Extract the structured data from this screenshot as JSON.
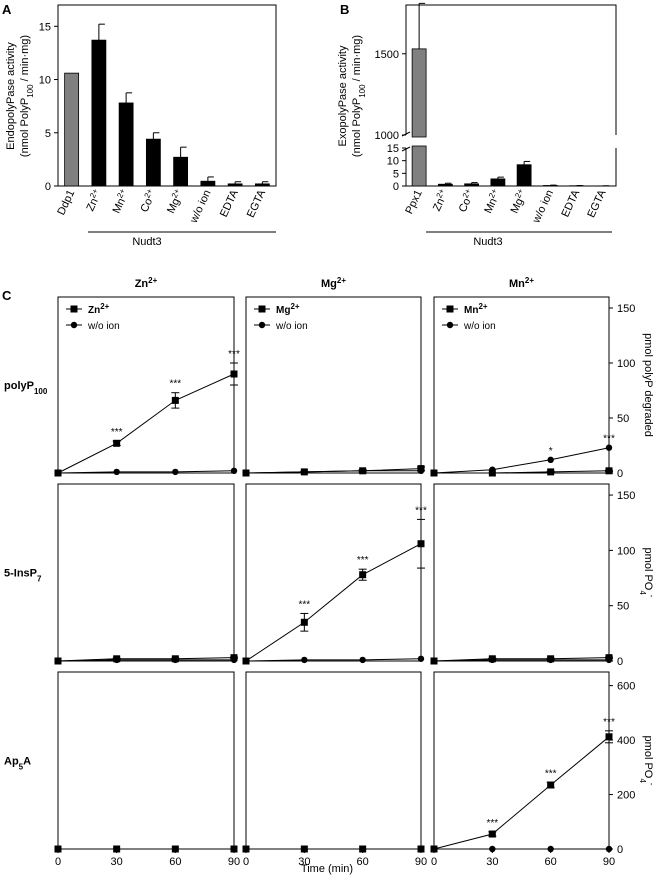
{
  "panel_letters": [
    "A",
    "B",
    "C"
  ],
  "group_label_a": "Nudt3",
  "group_label_b": "Nudt3",
  "chart_data": [
    {
      "id": "A",
      "type": "bar",
      "ylabel_line1": "EndopolyPase activity",
      "ylabel_line2_parts": [
        "(nmol PolyP",
        "100",
        " / min·mg)"
      ],
      "ylim": [
        0,
        17
      ],
      "yticks": [
        0,
        5,
        10,
        15
      ],
      "categories": [
        "Ddp1",
        "Zn²⁺",
        "Mn²⁺",
        "Co²⁺",
        "Mg²⁺",
        "w/o ion",
        "EDTA",
        "EGTA"
      ],
      "values": [
        10.6,
        13.7,
        7.8,
        4.4,
        2.7,
        0.45,
        0.2,
        0.2
      ],
      "errors": [
        0,
        1.5,
        0.95,
        0.6,
        0.95,
        0.4,
        0.2,
        0.2
      ],
      "colors": [
        "#808080",
        "#000000",
        "#000000",
        "#000000",
        "#000000",
        "#000000",
        "#000000",
        "#000000"
      ]
    },
    {
      "id": "B",
      "type": "bar",
      "broken_axis": true,
      "ylabel_line1": "ExopolyPase activity",
      "ylabel_line2_parts": [
        "(nmol PolyP",
        "100",
        " / min·mg)"
      ],
      "ylim_lower": [
        0,
        15
      ],
      "yticks_lower": [
        0,
        5,
        10,
        15
      ],
      "ylim_upper": [
        1000,
        1800
      ],
      "yticks_upper": [
        1000,
        1500
      ],
      "categories": [
        "Ppx1",
        "Zn²⁺",
        "Co²⁺",
        "Mn²⁺",
        "Mg²⁺",
        "w/o ion",
        "EDTA",
        "EGTA"
      ],
      "values": [
        1530,
        0.7,
        0.85,
        2.8,
        8.4,
        0.2,
        0.1,
        0.05
      ],
      "errors": [
        280,
        0.4,
        0.5,
        0.7,
        1.3,
        0.15,
        0.1,
        0.05
      ],
      "colors": [
        "#808080",
        "#000000",
        "#000000",
        "#000000",
        "#000000",
        "#000000",
        "#000000",
        "#000000"
      ]
    },
    {
      "id": "C",
      "type": "line",
      "x": [
        0,
        30,
        60,
        90
      ],
      "xticks": [
        0,
        30,
        60,
        90
      ],
      "xlim": [
        0,
        90
      ],
      "xlabel": "Time (min)",
      "columns": [
        {
          "header": "Zn",
          "sup": "2+"
        },
        {
          "header": "Mg",
          "sup": "2+"
        },
        {
          "header": "Mn",
          "sup": "2+"
        }
      ],
      "rows": [
        {
          "label_main": "polyP",
          "label_sub": "100",
          "ylabel_right": "pmol polyP degraded",
          "ylabel_sup": "",
          "ylim": [
            0,
            160
          ],
          "yticks": [
            0,
            50,
            100,
            150
          ],
          "panels": [
            {
              "ion": "Zn²⁺",
              "with_ion": [
                0,
                27,
                66,
                90
              ],
              "err": [
                0,
                2,
                7,
                10
              ],
              "wo_ion": [
                0,
                1,
                1,
                2
              ],
              "sig": [
                "",
                "***",
                "***",
                "***"
              ]
            },
            {
              "ion": "Mg²⁺",
              "with_ion": [
                0,
                1,
                2,
                4
              ],
              "err": [
                0,
                0.5,
                1,
                1.5
              ],
              "wo_ion": [
                0,
                1,
                2,
                2
              ],
              "sig": [
                "",
                "",
                "",
                ""
              ]
            },
            {
              "ion": "Mn²⁺",
              "with_ion": [
                0,
                0,
                1,
                2
              ],
              "err": [
                0,
                0,
                0.5,
                0.5
              ],
              "wo_ion": [
                0,
                3,
                12,
                23
              ],
              "sig": [
                "",
                "",
                "*",
                "***"
              ]
            }
          ]
        },
        {
          "label_main": "5-InsP",
          "label_sub": "7",
          "ylabel_right": "pmol PO",
          "ylabel_sup": "4",
          "ylim": [
            0,
            160
          ],
          "yticks": [
            0,
            50,
            100,
            150
          ],
          "panels": [
            {
              "with_ion": [
                0,
                2,
                2,
                3
              ],
              "err": [
                0,
                0.5,
                0.5,
                0.5
              ],
              "wo_ion": [
                0,
                1,
                1,
                1
              ],
              "sig": [
                "",
                "",
                "",
                ""
              ]
            },
            {
              "with_ion": [
                0,
                35,
                78,
                106
              ],
              "err": [
                0,
                8,
                5,
                22
              ],
              "wo_ion": [
                0,
                1,
                1,
                2
              ],
              "sig": [
                "",
                "***",
                "***",
                "***"
              ]
            },
            {
              "with_ion": [
                0,
                2,
                2,
                3
              ],
              "err": [
                0,
                0.5,
                0.5,
                0.5
              ],
              "wo_ion": [
                0,
                1,
                1,
                1
              ],
              "sig": [
                "",
                "",
                "",
                ""
              ]
            }
          ]
        },
        {
          "label_main": "Ap",
          "label_sub": "5",
          "label_suffix": "A",
          "ylabel_right": "pmol PO",
          "ylabel_sup": "4",
          "ylim": [
            0,
            650
          ],
          "yticks": [
            0,
            200,
            400,
            600
          ],
          "panels": [
            {
              "with_ion": [
                0,
                0,
                0,
                0
              ],
              "err": [
                0,
                0,
                0,
                0
              ],
              "wo_ion": [
                0,
                0,
                0,
                0
              ],
              "sig": [
                "",
                "",
                "",
                ""
              ]
            },
            {
              "with_ion": [
                0,
                0,
                0,
                0
              ],
              "err": [
                0,
                0,
                0,
                0
              ],
              "wo_ion": [
                0,
                0,
                0,
                0
              ],
              "sig": [
                "",
                "",
                "",
                ""
              ]
            },
            {
              "with_ion": [
                0,
                55,
                235,
                412
              ],
              "err": [
                0,
                8,
                10,
                22
              ],
              "wo_ion": [
                0,
                0,
                0,
                0
              ],
              "sig": [
                "",
                "***",
                "***",
                "***"
              ]
            }
          ]
        }
      ],
      "legend": {
        "with_ion": [
          "Zn²⁺",
          "Mg²⁺",
          "Mn²⁺"
        ],
        "wo_ion": "w/o ion",
        "with_ion_marker": "square",
        "wo_ion_marker": "circle"
      }
    }
  ]
}
